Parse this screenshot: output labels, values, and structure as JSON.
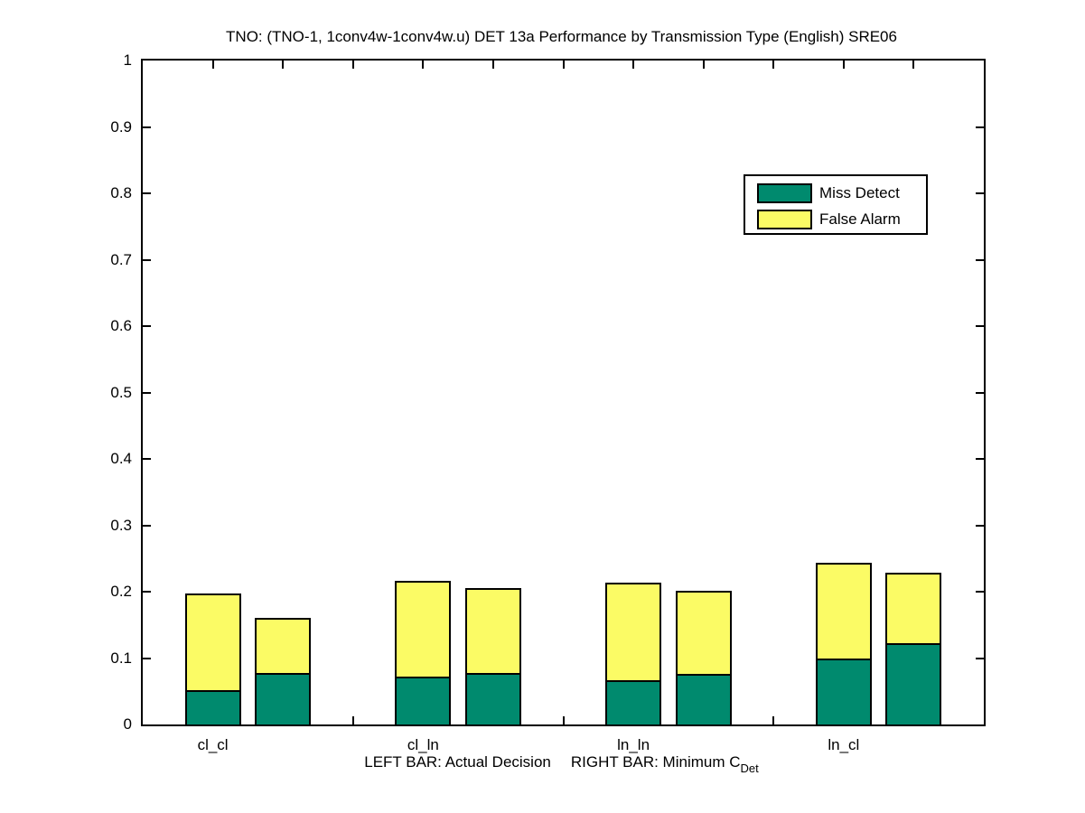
{
  "figure": {
    "title": "TNO: (TNO-1, 1conv4w-1conv4w.u) DET 13a Performance by Transmission Type (English) SRE06",
    "xlabel": {
      "left_part": "LEFT BAR: Actual Decision",
      "right_part": "RIGHT BAR: Minimum C",
      "subscript": "Det"
    }
  },
  "legend": {
    "entries": [
      {
        "label": "Miss Detect",
        "color": "#008A6E"
      },
      {
        "label": "False Alarm",
        "color": "#FBFB65"
      }
    ]
  },
  "chart_data": {
    "type": "bar",
    "stacked": true,
    "title": "TNO: (TNO-1, 1conv4w-1conv4w.u) DET 13a Performance by Transmission Type (English) SRE06",
    "xlabel": "LEFT BAR: Actual Decision    RIGHT BAR: Minimum C_Det",
    "categories": [
      "cl_cl",
      "cl_ln",
      "ln_ln",
      "ln_cl"
    ],
    "bar_variants": [
      "Actual Decision (left bar)",
      "Minimum C_Det (right bar)"
    ],
    "series": [
      {
        "name": "Miss Detect",
        "color": "#008A6E",
        "actual_decision": [
          0.052,
          0.072,
          0.067,
          0.099
        ],
        "minimum_cdet": [
          0.078,
          0.078,
          0.076,
          0.122
        ]
      },
      {
        "name": "False Alarm",
        "color": "#FBFB65",
        "actual_decision": [
          0.145,
          0.145,
          0.146,
          0.144
        ],
        "minimum_cdet": [
          0.083,
          0.128,
          0.126,
          0.106
        ]
      }
    ],
    "bar_totals": {
      "actual_decision": [
        0.197,
        0.217,
        0.213,
        0.243
      ],
      "minimum_cdet": [
        0.161,
        0.206,
        0.202,
        0.228
      ]
    },
    "ylim": [
      0,
      1
    ],
    "ytick_labels": [
      "0",
      "0.1",
      "0.2",
      "0.3",
      "0.4",
      "0.5",
      "0.6",
      "0.7",
      "0.8",
      "0.9",
      "1"
    ],
    "xlim": [
      0,
      12
    ],
    "positions_actual": [
      1,
      4,
      7,
      10
    ],
    "positions_minimum": [
      2,
      5,
      8,
      11
    ],
    "bar_width": 0.8,
    "top_axis_ticks": [
      1,
      2,
      3,
      4,
      5,
      6,
      7,
      8,
      9,
      10,
      11
    ],
    "bottom_axis_visible_ticks": [
      3,
      6,
      9
    ],
    "grid": false,
    "legend_position": "upper-right-inside",
    "axis_color": "#000000",
    "background_color": "#FFFFFF"
  }
}
